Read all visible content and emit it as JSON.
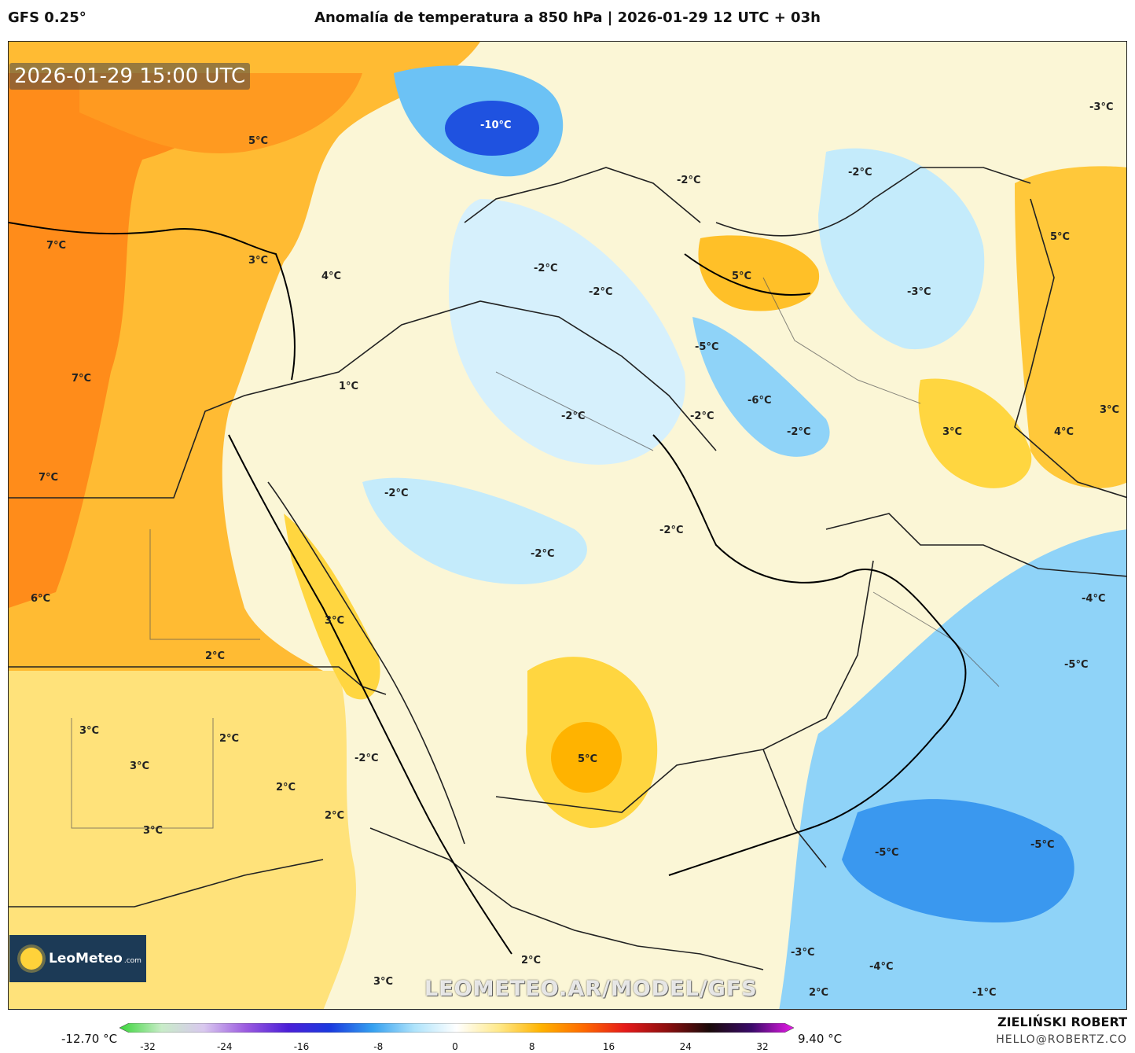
{
  "header": {
    "model": "GFS 0.25°",
    "title": "Anomalía de temperatura a 850 hPa | 2026-01-29 12 UTC + 03h"
  },
  "map": {
    "timestamp": "2026-01-29 15:00 UTC",
    "watermark": "LEOMETEO.AR/MODEL/GFS",
    "contour_labels": [
      {
        "text": "5°C"
      },
      {
        "text": "7°C"
      },
      {
        "text": "3°C"
      },
      {
        "text": "4°C"
      },
      {
        "text": "-10°C"
      },
      {
        "text": "-2°C"
      },
      {
        "text": "-2°C"
      },
      {
        "text": "-2°C"
      },
      {
        "text": "-3°C"
      },
      {
        "text": "-2°C"
      },
      {
        "text": "5°C"
      },
      {
        "text": "-3°C"
      },
      {
        "text": "5°C"
      },
      {
        "text": "-5°C"
      },
      {
        "text": "-6°C"
      },
      {
        "text": "-2°C"
      },
      {
        "text": "1°C"
      },
      {
        "text": "-2°C"
      },
      {
        "text": "7°C"
      },
      {
        "text": "-2°C"
      },
      {
        "text": "3°C"
      },
      {
        "text": "4°C"
      },
      {
        "text": "3°C"
      },
      {
        "text": "7°C"
      },
      {
        "text": "-2°C"
      },
      {
        "text": "-2°C"
      },
      {
        "text": "-2°C"
      },
      {
        "text": "6°C"
      },
      {
        "text": "3°C"
      },
      {
        "text": "-4°C"
      },
      {
        "text": "2°C"
      },
      {
        "text": "-5°C"
      },
      {
        "text": "3°C"
      },
      {
        "text": "2°C"
      },
      {
        "text": "3°C"
      },
      {
        "text": "-2°C"
      },
      {
        "text": "5°C"
      },
      {
        "text": "2°C"
      },
      {
        "text": "2°C"
      },
      {
        "text": "3°C"
      },
      {
        "text": "-5°C"
      },
      {
        "text": "-5°C"
      },
      {
        "text": "2°C"
      },
      {
        "text": "-3°C"
      },
      {
        "text": "-4°C"
      },
      {
        "text": "3°C"
      },
      {
        "text": "2°C"
      },
      {
        "text": "-1°C"
      }
    ]
  },
  "logo": {
    "name": "LeoMeteo",
    "domain": ".com"
  },
  "colorbar": {
    "min_label": "-12.70 °C",
    "max_label": "9.40 °C",
    "ticks": [
      "-32",
      "-24",
      "-16",
      "-8",
      "0",
      "8",
      "16",
      "24",
      "32"
    ],
    "stops": [
      "#39d639",
      "#c8ecc8",
      "#d9c8ef",
      "#9b5be0",
      "#4b1fd8",
      "#1a3adf",
      "#34a0f0",
      "#aee3fb",
      "#ffffff",
      "#ffe98a",
      "#ffb300",
      "#ff6a00",
      "#e51a1a",
      "#8c0f0f",
      "#1a0a0a",
      "#3a0a6a",
      "#e81ae8"
    ]
  },
  "footer": {
    "author": "ZIELIŃSKI ROBERT",
    "email": "HELLO@ROBERTZ.CO"
  }
}
